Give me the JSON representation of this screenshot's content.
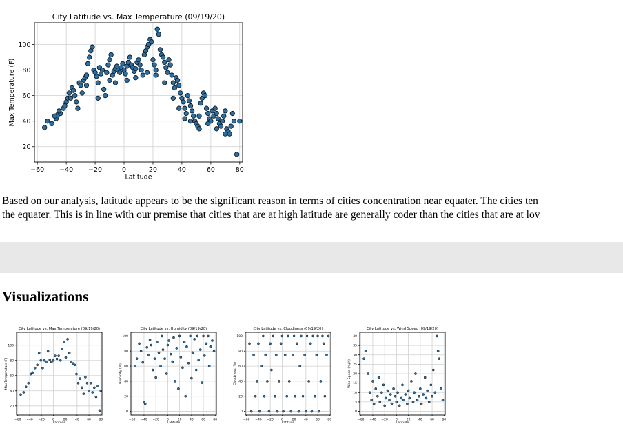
{
  "paragraph": {
    "line1": "Based on our analysis, latitude appears to be the significant reason in terms of cities concentration near equater. The cities ten",
    "line2": "the equater. This is in line with our premise that cities that are at high latitude are generally coder than the cities that are at lov"
  },
  "visualizations_heading": "Visualizations",
  "colors": {
    "marker_fill": "#2f6f9f",
    "marker_edge": "#0b1a28",
    "band": "#e8e8e8"
  },
  "chart_data": [
    {
      "type": "scatter",
      "title": "City Latitude vs. Max Temperature (09/19/20)",
      "xlabel": "Latitude",
      "ylabel": "Max Temperature (F)",
      "xlim": [
        -62,
        82
      ],
      "ylim": [
        8,
        117
      ],
      "xticks": [
        -60,
        -40,
        -20,
        0,
        20,
        40,
        60,
        80
      ],
      "yticks": [
        20,
        40,
        60,
        80,
        100
      ],
      "grid": true,
      "points": [
        [
          -55,
          35
        ],
        [
          -53,
          40
        ],
        [
          -50,
          38
        ],
        [
          -47,
          42
        ],
        [
          -46,
          45
        ],
        [
          -44,
          46
        ],
        [
          -42,
          50
        ],
        [
          -40,
          55
        ],
        [
          -39,
          58
        ],
        [
          -38,
          62
        ],
        [
          -36,
          66
        ],
        [
          -35,
          64
        ],
        [
          -34,
          60
        ],
        [
          -33,
          55
        ],
        [
          -32,
          50
        ],
        [
          -31,
          70
        ],
        [
          -30,
          68
        ],
        [
          -28,
          72
        ],
        [
          -27,
          74
        ],
        [
          -26,
          76
        ],
        [
          -25,
          85
        ],
        [
          -24,
          90
        ],
        [
          -23,
          95
        ],
        [
          -22,
          98
        ],
        [
          -21,
          80
        ],
        [
          -20,
          78
        ],
        [
          -19,
          75
        ],
        [
          -18,
          70
        ],
        [
          -17,
          82
        ],
        [
          -16,
          77
        ],
        [
          -15,
          80
        ],
        [
          -14,
          65
        ],
        [
          -13,
          60
        ],
        [
          -12,
          78
        ],
        [
          -11,
          84
        ],
        [
          -10,
          88
        ],
        [
          -9,
          92
        ],
        [
          -8,
          76
        ],
        [
          -7,
          79
        ],
        [
          -6,
          81
        ],
        [
          -5,
          83
        ],
        [
          -4,
          80
        ],
        [
          -3,
          78
        ],
        [
          -2,
          82
        ],
        [
          -1,
          85
        ],
        [
          0,
          80
        ],
        [
          1,
          77
        ],
        [
          2,
          83
        ],
        [
          3,
          86
        ],
        [
          4,
          90
        ],
        [
          5,
          84
        ],
        [
          6,
          82
        ],
        [
          7,
          79
        ],
        [
          8,
          81
        ],
        [
          9,
          86
        ],
        [
          10,
          88
        ],
        [
          11,
          84
        ],
        [
          12,
          80
        ],
        [
          13,
          76
        ],
        [
          14,
          92
        ],
        [
          15,
          95
        ],
        [
          16,
          98
        ],
        [
          17,
          100
        ],
        [
          18,
          104
        ],
        [
          19,
          102
        ],
        [
          20,
          88
        ],
        [
          21,
          84
        ],
        [
          22,
          80
        ],
        [
          23,
          112
        ],
        [
          24,
          108
        ],
        [
          25,
          96
        ],
        [
          26,
          92
        ],
        [
          27,
          90
        ],
        [
          28,
          86
        ],
        [
          29,
          82
        ],
        [
          30,
          78
        ],
        [
          31,
          88
        ],
        [
          32,
          84
        ],
        [
          33,
          76
        ],
        [
          34,
          70
        ],
        [
          35,
          66
        ],
        [
          36,
          74
        ],
        [
          37,
          72
        ],
        [
          38,
          68
        ],
        [
          39,
          62
        ],
        [
          40,
          58
        ],
        [
          41,
          55
        ],
        [
          42,
          50
        ],
        [
          43,
          46
        ],
        [
          44,
          60
        ],
        [
          45,
          56
        ],
        [
          46,
          52
        ],
        [
          47,
          48
        ],
        [
          48,
          44
        ],
        [
          49,
          40
        ],
        [
          50,
          38
        ],
        [
          51,
          36
        ],
        [
          52,
          34
        ],
        [
          53,
          54
        ],
        [
          54,
          58
        ],
        [
          55,
          62
        ],
        [
          56,
          60
        ],
        [
          57,
          50
        ],
        [
          58,
          46
        ],
        [
          59,
          42
        ],
        [
          60,
          40
        ],
        [
          61,
          48
        ],
        [
          62,
          44
        ],
        [
          63,
          50
        ],
        [
          64,
          46
        ],
        [
          65,
          42
        ],
        [
          66,
          38
        ],
        [
          67,
          36
        ],
        [
          68,
          40
        ],
        [
          69,
          44
        ],
        [
          70,
          48
        ],
        [
          71,
          34
        ],
        [
          72,
          32
        ],
        [
          73,
          30
        ],
        [
          74,
          36
        ],
        [
          75,
          46
        ],
        [
          76,
          40
        ],
        [
          78,
          14
        ],
        [
          80,
          40
        ],
        [
          -48,
          44
        ],
        [
          -45,
          48
        ],
        [
          -41,
          52
        ],
        [
          -37,
          58
        ],
        [
          -29,
          62
        ],
        [
          -26,
          68
        ],
        [
          -18,
          58
        ],
        [
          -10,
          72
        ],
        [
          -6,
          70
        ],
        [
          2,
          72
        ],
        [
          8,
          74
        ],
        [
          16,
          78
        ],
        [
          22,
          76
        ],
        [
          28,
          70
        ],
        [
          34,
          58
        ],
        [
          38,
          50
        ],
        [
          42,
          42
        ],
        [
          46,
          40
        ],
        [
          52,
          44
        ],
        [
          58,
          38
        ],
        [
          64,
          34
        ],
        [
          70,
          30
        ]
      ]
    },
    {
      "type": "scatter",
      "title": "City Latitude vs. Max Temperature (09/19/20)",
      "xlabel": "Latitude",
      "ylabel": "Max Temperature (F)",
      "xlim": [
        -62,
        82
      ],
      "ylim": [
        8,
        117
      ],
      "xticks": [
        -60,
        -40,
        -20,
        0,
        20,
        40,
        60,
        80
      ],
      "yticks": [
        20,
        40,
        60,
        80,
        100
      ],
      "points": [
        [
          -55,
          35
        ],
        [
          -50,
          38
        ],
        [
          -46,
          45
        ],
        [
          -42,
          50
        ],
        [
          -38,
          62
        ],
        [
          -35,
          64
        ],
        [
          -31,
          70
        ],
        [
          -27,
          74
        ],
        [
          -24,
          90
        ],
        [
          -21,
          80
        ],
        [
          -18,
          70
        ],
        [
          -15,
          80
        ],
        [
          -12,
          78
        ],
        [
          -9,
          92
        ],
        [
          -6,
          81
        ],
        [
          -3,
          78
        ],
        [
          0,
          80
        ],
        [
          3,
          86
        ],
        [
          6,
          82
        ],
        [
          9,
          86
        ],
        [
          12,
          80
        ],
        [
          15,
          95
        ],
        [
          18,
          104
        ],
        [
          21,
          84
        ],
        [
          24,
          108
        ],
        [
          27,
          90
        ],
        [
          30,
          78
        ],
        [
          33,
          76
        ],
        [
          36,
          74
        ],
        [
          39,
          62
        ],
        [
          42,
          50
        ],
        [
          45,
          56
        ],
        [
          48,
          44
        ],
        [
          51,
          36
        ],
        [
          54,
          58
        ],
        [
          57,
          50
        ],
        [
          60,
          40
        ],
        [
          63,
          50
        ],
        [
          66,
          38
        ],
        [
          69,
          44
        ],
        [
          72,
          32
        ],
        [
          75,
          46
        ],
        [
          78,
          14
        ],
        [
          80,
          40
        ]
      ]
    },
    {
      "type": "scatter",
      "title": "City Latitude vs. Humidity (09/19/20)",
      "xlabel": "Latitude",
      "ylabel": "Humidity (%)",
      "xlim": [
        -62,
        82
      ],
      "ylim": [
        -5,
        105
      ],
      "xticks": [
        -60,
        -40,
        -20,
        0,
        20,
        40,
        60,
        80
      ],
      "yticks": [
        0,
        20,
        40,
        60,
        80,
        100
      ],
      "points": [
        [
          -55,
          60
        ],
        [
          -52,
          70
        ],
        [
          -48,
          90
        ],
        [
          -45,
          80
        ],
        [
          -42,
          65
        ],
        [
          -40,
          12
        ],
        [
          -38,
          10
        ],
        [
          -35,
          85
        ],
        [
          -32,
          75
        ],
        [
          -30,
          95
        ],
        [
          -28,
          88
        ],
        [
          -25,
          55
        ],
        [
          -22,
          70
        ],
        [
          -20,
          45
        ],
        [
          -18,
          92
        ],
        [
          -15,
          78
        ],
        [
          -12,
          60
        ],
        [
          -10,
          100
        ],
        [
          -8,
          82
        ],
        [
          -5,
          70
        ],
        [
          -2,
          50
        ],
        [
          0,
          88
        ],
        [
          2,
          94
        ],
        [
          5,
          76
        ],
        [
          8,
          66
        ],
        [
          10,
          98
        ],
        [
          12,
          40
        ],
        [
          15,
          84
        ],
        [
          18,
          30
        ],
        [
          20,
          100
        ],
        [
          22,
          72
        ],
        [
          25,
          58
        ],
        [
          28,
          92
        ],
        [
          30,
          20
        ],
        [
          32,
          86
        ],
        [
          35,
          64
        ],
        [
          38,
          100
        ],
        [
          40,
          44
        ],
        [
          42,
          78
        ],
        [
          45,
          96
        ],
        [
          48,
          55
        ],
        [
          50,
          100
        ],
        [
          52,
          68
        ],
        [
          55,
          82
        ],
        [
          58,
          38
        ],
        [
          60,
          100
        ],
        [
          62,
          74
        ],
        [
          65,
          90
        ],
        [
          68,
          100
        ],
        [
          70,
          60
        ],
        [
          72,
          86
        ],
        [
          75,
          94
        ],
        [
          78,
          80
        ]
      ]
    },
    {
      "type": "scatter",
      "title": "City Latitude vs. Cloudiness (09/19/20)",
      "xlabel": "Latitude",
      "ylabel": "Cloudiness (%)",
      "xlim": [
        -62,
        82
      ],
      "ylim": [
        -5,
        105
      ],
      "xticks": [
        -60,
        -40,
        -20,
        0,
        20,
        40,
        60,
        80
      ],
      "yticks": [
        0,
        20,
        40,
        60,
        80,
        100
      ],
      "points": [
        [
          -55,
          90
        ],
        [
          -52,
          0
        ],
        [
          -48,
          75
        ],
        [
          -45,
          20
        ],
        [
          -42,
          40
        ],
        [
          -40,
          90
        ],
        [
          -38,
          0
        ],
        [
          -35,
          60
        ],
        [
          -32,
          100
        ],
        [
          -30,
          20
        ],
        [
          -28,
          75
        ],
        [
          -25,
          40
        ],
        [
          -22,
          0
        ],
        [
          -20,
          90
        ],
        [
          -18,
          55
        ],
        [
          -15,
          100
        ],
        [
          -12,
          20
        ],
        [
          -10,
          75
        ],
        [
          -8,
          0
        ],
        [
          -5,
          40
        ],
        [
          -2,
          90
        ],
        [
          0,
          100
        ],
        [
          2,
          0
        ],
        [
          5,
          75
        ],
        [
          8,
          20
        ],
        [
          10,
          100
        ],
        [
          12,
          40
        ],
        [
          15,
          0
        ],
        [
          18,
          75
        ],
        [
          20,
          100
        ],
        [
          22,
          20
        ],
        [
          25,
          90
        ],
        [
          28,
          0
        ],
        [
          30,
          60
        ],
        [
          32,
          100
        ],
        [
          35,
          20
        ],
        [
          38,
          75
        ],
        [
          40,
          0
        ],
        [
          42,
          100
        ],
        [
          45,
          40
        ],
        [
          48,
          90
        ],
        [
          50,
          0
        ],
        [
          52,
          100
        ],
        [
          55,
          20
        ],
        [
          58,
          75
        ],
        [
          60,
          100
        ],
        [
          62,
          0
        ],
        [
          65,
          40
        ],
        [
          68,
          100
        ],
        [
          70,
          90
        ],
        [
          72,
          20
        ],
        [
          75,
          75
        ],
        [
          78,
          100
        ]
      ]
    },
    {
      "type": "scatter",
      "title": "City Latitude vs. Wind Speed (09/19/20)",
      "xlabel": "Latitude",
      "ylabel": "Wind Speed (mph)",
      "xlim": [
        -62,
        82
      ],
      "ylim": [
        -2,
        42
      ],
      "xticks": [
        -60,
        -40,
        -20,
        0,
        20,
        40,
        60,
        80
      ],
      "yticks": [
        0,
        5,
        10,
        15,
        20,
        25,
        30,
        35,
        40
      ],
      "points": [
        [
          -55,
          28
        ],
        [
          -52,
          32
        ],
        [
          -48,
          20
        ],
        [
          -45,
          10
        ],
        [
          -42,
          6
        ],
        [
          -40,
          16
        ],
        [
          -38,
          4
        ],
        [
          -35,
          12
        ],
        [
          -32,
          8
        ],
        [
          -30,
          18
        ],
        [
          -28,
          5
        ],
        [
          -25,
          10
        ],
        [
          -22,
          14
        ],
        [
          -20,
          3
        ],
        [
          -18,
          7
        ],
        [
          -15,
          11
        ],
        [
          -12,
          6
        ],
        [
          -10,
          9
        ],
        [
          -8,
          4
        ],
        [
          -5,
          12
        ],
        [
          -2,
          8
        ],
        [
          0,
          5
        ],
        [
          2,
          10
        ],
        [
          5,
          3
        ],
        [
          8,
          7
        ],
        [
          10,
          14
        ],
        [
          12,
          6
        ],
        [
          15,
          9
        ],
        [
          18,
          4
        ],
        [
          20,
          11
        ],
        [
          22,
          7
        ],
        [
          25,
          16
        ],
        [
          28,
          5
        ],
        [
          30,
          10
        ],
        [
          32,
          20
        ],
        [
          35,
          6
        ],
        [
          38,
          8
        ],
        [
          40,
          12
        ],
        [
          42,
          4
        ],
        [
          45,
          9
        ],
        [
          48,
          18
        ],
        [
          50,
          7
        ],
        [
          52,
          11
        ],
        [
          55,
          5
        ],
        [
          58,
          14
        ],
        [
          60,
          8
        ],
        [
          62,
          22
        ],
        [
          65,
          10
        ],
        [
          68,
          40
        ],
        [
          70,
          32
        ],
        [
          72,
          28
        ],
        [
          75,
          12
        ],
        [
          78,
          6
        ]
      ]
    }
  ]
}
